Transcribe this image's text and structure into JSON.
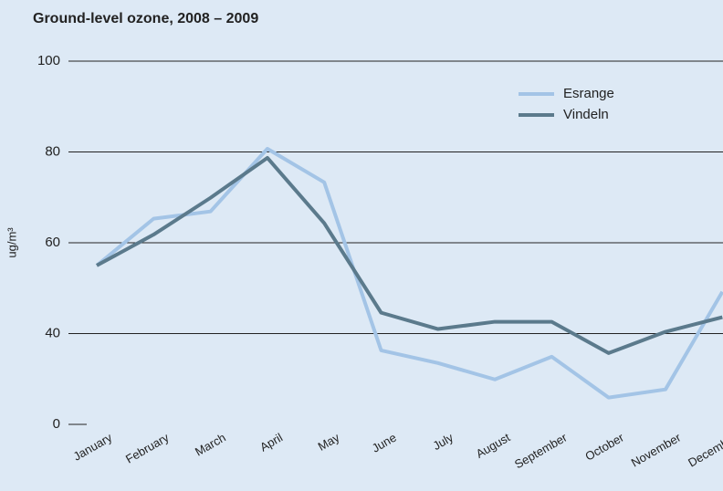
{
  "chart_data": {
    "type": "line",
    "title": "Ground-level ozone, 2008 – 2009",
    "y_label": "ug/m³",
    "categories": [
      "January",
      "February",
      "March",
      "April",
      "May",
      "June",
      "July",
      "August",
      "September",
      "October",
      "November",
      "December"
    ],
    "series": [
      {
        "name": "Esrange",
        "color": "#a3c4e6",
        "values": [
          55,
          65.3,
          66.9,
          80.7,
          73.3,
          36.3,
          33.5,
          29.9,
          34.9,
          25.9,
          27.7,
          49.2
        ]
      },
      {
        "name": "Vindeln",
        "color": "#5b7a8c",
        "values": [
          55,
          61.8,
          69.9,
          78.7,
          64.3,
          44.6,
          41,
          42.6,
          42.6,
          35.7,
          40.4,
          43.6
        ]
      }
    ],
    "ylim": [
      20,
      100
    ],
    "yticks": [
      {
        "value": 20,
        "label": "0"
      },
      40,
      60,
      80,
      100
    ],
    "grid": true
  }
}
